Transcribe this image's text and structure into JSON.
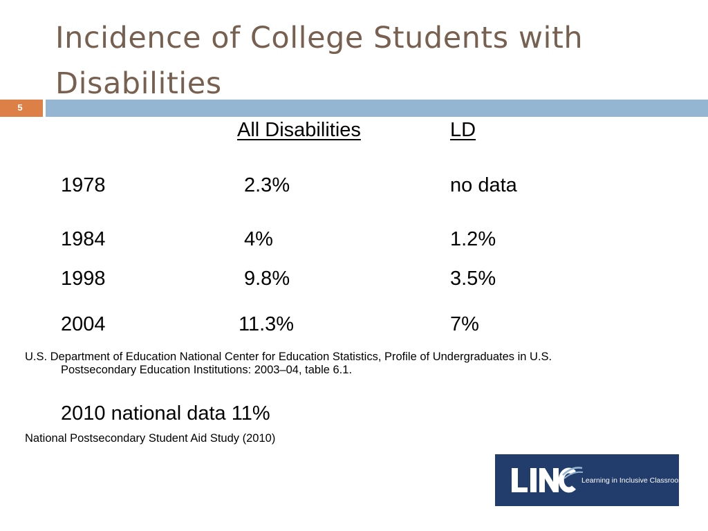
{
  "slide": {
    "title": "Incidence of College Students with Disabilities",
    "number": "5"
  },
  "table": {
    "headers": [
      "All Disabilities",
      "LD"
    ],
    "rows": [
      {
        "year": "1978",
        "all": "2.3%",
        "ld": "no data"
      },
      {
        "year": "1984",
        "all": "4%",
        "ld": "1.2%"
      },
      {
        "year": "1998",
        "all": "9.8%",
        "ld": "3.5%"
      },
      {
        "year": "2004",
        "all": "11.3%",
        "ld": "7%"
      }
    ]
  },
  "citation1": {
    "line1": "U.S. Department of Education National Center for Education Statistics, Profile of Undergraduates in U.S.",
    "line2": "Postsecondary Education Institutions: 2003–04, table 6.1."
  },
  "national": "2010 national data 11%",
  "citation2": "National Postsecondary Student Aid Study (2010)",
  "logo": {
    "name": "LINC",
    "tagline": "Learning in Inclusive Classrooms",
    "bg_color": "#223d6b"
  },
  "colors": {
    "title": "#77604f",
    "accent_orange": "#dd8047",
    "accent_blue": "#94b6d2"
  }
}
